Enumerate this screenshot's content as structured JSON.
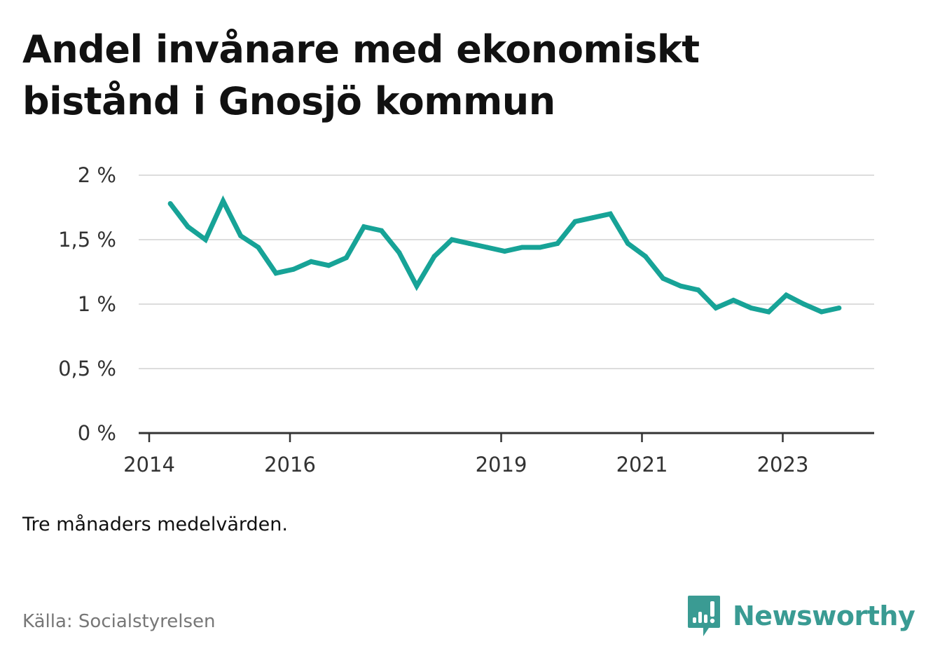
{
  "title": "Andel invånare med ekonomiskt bistånd i Gnosjö kommun",
  "note": "Tre månaders medelvärden.",
  "source": "Källa: Socialstyrelsen",
  "brand": {
    "name": "Newsworthy",
    "color": "#3a9b93"
  },
  "chart_data": {
    "type": "line",
    "title": "Andel invånare med ekonomiskt bistånd i Gnosjö kommun",
    "xlabel": "",
    "ylabel": "",
    "ylim": [
      0,
      2
    ],
    "xlim": [
      2014,
      2024.6
    ],
    "grid": true,
    "line_color": "#17a397",
    "y_ticks": [
      {
        "value": 0,
        "label": "0 %"
      },
      {
        "value": 0.5,
        "label": "0,5 %"
      },
      {
        "value": 1,
        "label": "1 %"
      },
      {
        "value": 1.5,
        "label": "1,5 %"
      },
      {
        "value": 2,
        "label": "2 %"
      }
    ],
    "x_ticks": [
      {
        "value": 2014,
        "label": "2014"
      },
      {
        "value": 2016,
        "label": "2016"
      },
      {
        "value": 2019,
        "label": "2019"
      },
      {
        "value": 2021,
        "label": "2021"
      },
      {
        "value": 2023,
        "label": "2023"
      }
    ],
    "series": [
      {
        "name": "Gnosjö kommun",
        "x": [
          2014.3,
          2014.55,
          2014.8,
          2015.05,
          2015.3,
          2015.55,
          2015.8,
          2016.05,
          2016.3,
          2016.55,
          2016.8,
          2017.05,
          2017.3,
          2017.55,
          2017.8,
          2018.05,
          2018.3,
          2018.55,
          2018.8,
          2019.05,
          2019.3,
          2019.55,
          2019.8,
          2020.05,
          2020.3,
          2020.55,
          2020.8,
          2021.05,
          2021.3,
          2021.55,
          2021.8,
          2022.05,
          2022.3,
          2022.55,
          2022.8,
          2023.05,
          2023.3,
          2023.55,
          2023.8
        ],
        "values": [
          1.78,
          1.6,
          1.5,
          1.8,
          1.53,
          1.44,
          1.24,
          1.27,
          1.33,
          1.3,
          1.36,
          1.6,
          1.57,
          1.4,
          1.14,
          1.37,
          1.5,
          1.47,
          1.44,
          1.41,
          1.44,
          1.44,
          1.47,
          1.64,
          1.67,
          1.7,
          1.47,
          1.37,
          1.2,
          1.14,
          1.11,
          0.97,
          1.03,
          0.97,
          0.94,
          1.07,
          1.0,
          0.94,
          0.97
        ]
      }
    ]
  }
}
